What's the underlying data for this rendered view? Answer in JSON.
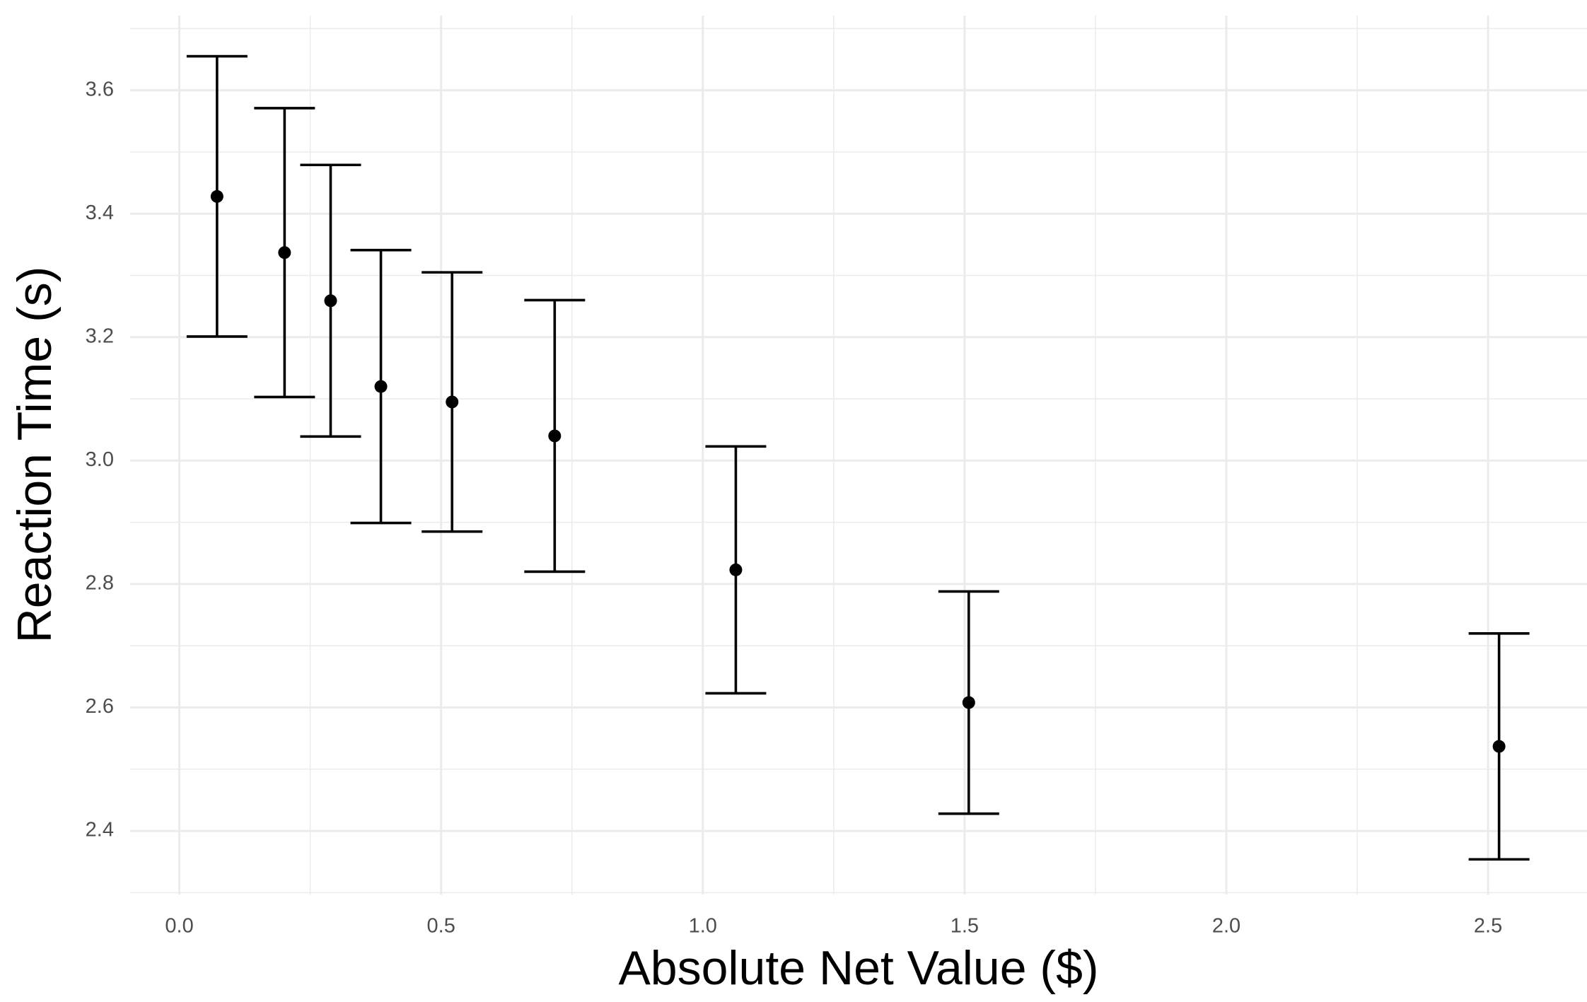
{
  "chart_data": {
    "type": "errorbar-scatter",
    "x_label": "Absolute Net Value ($)",
    "y_label": "Reaction Time (s)",
    "x": [
      0.072,
      0.201,
      0.289,
      0.385,
      0.521,
      0.717,
      1.063,
      1.508,
      2.521
    ],
    "values": [
      3.428,
      3.337,
      3.259,
      3.12,
      3.095,
      3.04,
      2.823,
      2.608,
      2.537
    ],
    "error": [
      0.227,
      0.234,
      0.22,
      0.221,
      0.21,
      0.22,
      0.2,
      0.18,
      0.183
    ],
    "color": "#000000",
    "xlim": [
      -0.094,
      2.689
    ],
    "ylim": [
      2.297,
      3.721
    ],
    "xticks": [
      {
        "value": 0,
        "label": "0.0"
      },
      0.5,
      {
        "value": 1,
        "label": "1.0"
      },
      1.5,
      {
        "value": 2,
        "label": "2.0"
      },
      2.5
    ],
    "yticks": [
      2.4,
      2.6,
      2.8,
      {
        "value": 3,
        "label": "3.0"
      },
      3.2,
      3.4,
      3.6
    ],
    "x_minor_grid": [
      0.25,
      0.75,
      1.25,
      1.75,
      2.25
    ],
    "y_minor_grid": [
      2.3,
      2.5,
      2.7,
      2.9,
      3.1,
      3.3,
      3.5,
      3.7
    ],
    "grid": true
  }
}
